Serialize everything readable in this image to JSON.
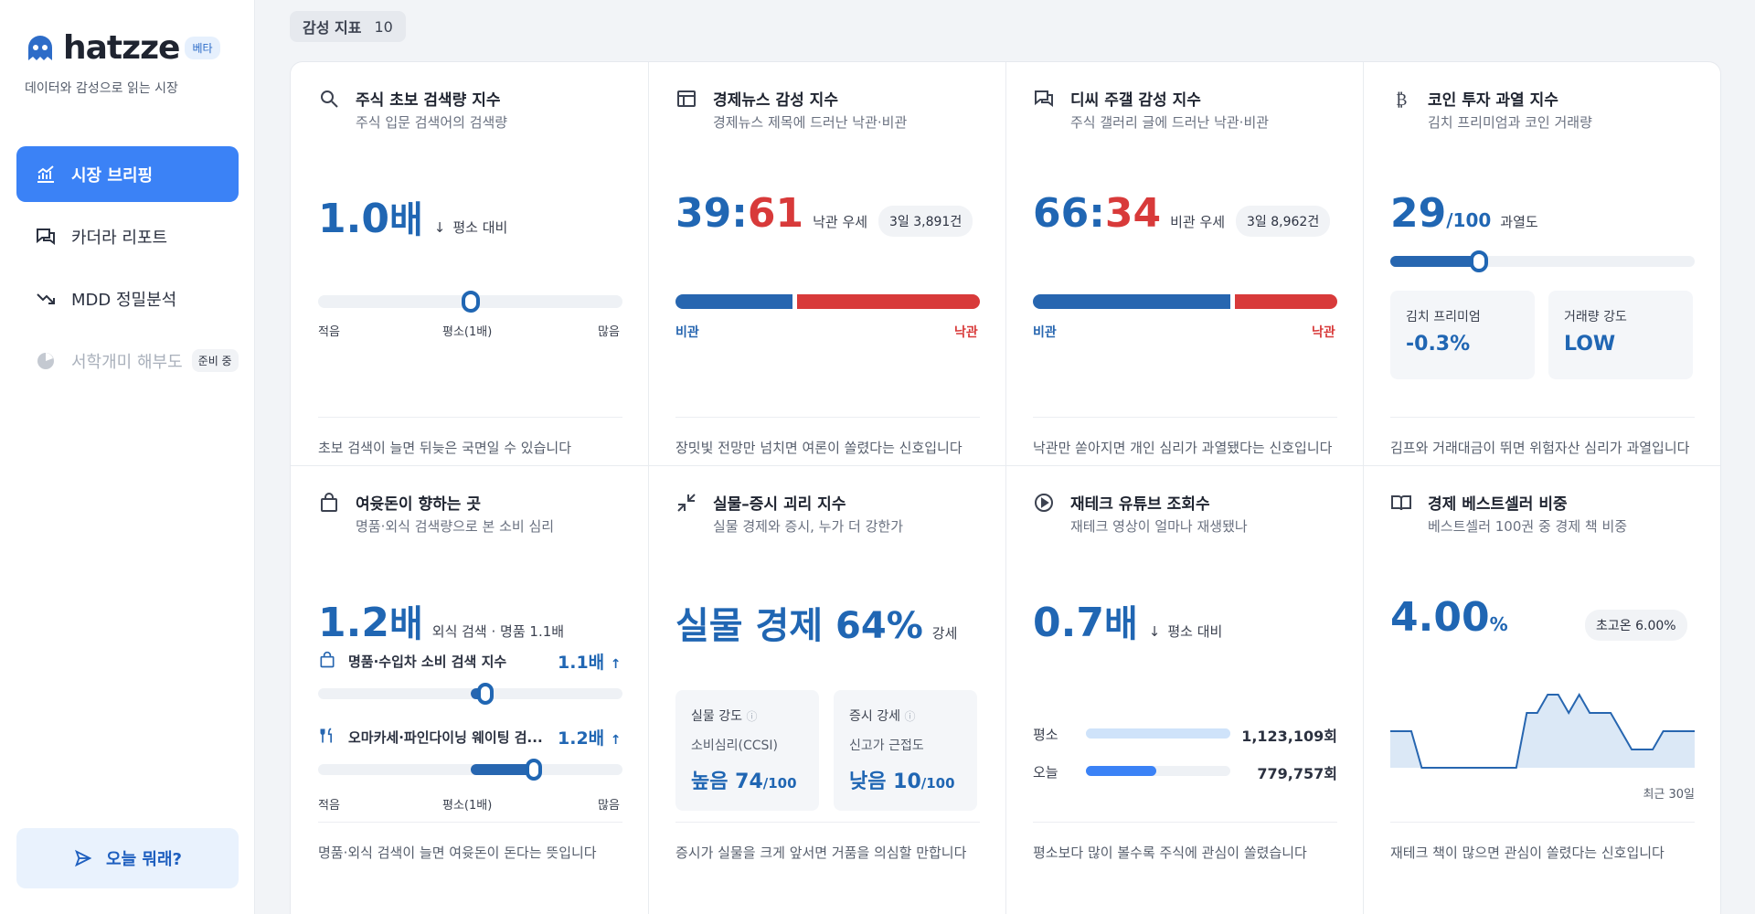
{
  "brand": {
    "name": "hatzze",
    "beta": "베타",
    "tagline": "데이터와 감성으로 읽는 시장"
  },
  "nav": {
    "items": [
      {
        "label": "시장 브리핑",
        "icon": "chart-icon",
        "state": "active"
      },
      {
        "label": "카더라 리포트",
        "icon": "chat-icon",
        "state": "normal"
      },
      {
        "label": "MDD 정밀분석",
        "icon": "trend-down-icon",
        "state": "normal"
      },
      {
        "label": "서학개미 해부도",
        "icon": "pie-icon",
        "state": "disabled",
        "badge": "준비 중"
      }
    ],
    "today_button": "오늘 뭐래?"
  },
  "section": {
    "label": "감성 지표",
    "count": "10"
  },
  "cards": {
    "c1": {
      "title": "주식 초보 검색량 지수",
      "sub": "주식 입문 검색어의 검색량",
      "value": "1.0",
      "unit": "배",
      "arrow": "↓",
      "note": "평소 대비",
      "gauge_fraction": 0.5,
      "low": "적음",
      "mid": "평소(1배)",
      "high": "많음",
      "foot": "초보 검색이 늘면 뒤늦은 국면일 수 있습니다"
    },
    "c2": {
      "title": "경제뉴스 감성 지수",
      "sub": "경제뉴스 제목에 드러난 낙관·비관",
      "neg": "39",
      "sep": ":",
      "pos": "61",
      "note": "낙관 우세",
      "pill": "3일 3,891건",
      "left_label": "비관",
      "right_label": "낙관",
      "neg_share": 39,
      "pos_share": 61,
      "foot": "장밋빛 전망만 넘치면 여론이 쏠렸다는 신호입니다"
    },
    "c3": {
      "title": "디씨 주갤 감성 지수",
      "sub": "주식 갤러리 글에 드러난 낙관·비관",
      "neg": "66",
      "sep": ":",
      "pos": "34",
      "note": "비관 우세",
      "pill": "3일 8,962건",
      "left_label": "비관",
      "right_label": "낙관",
      "neg_share": 66,
      "pos_share": 34,
      "foot": "낙관만 쏟아지면 개인 심리가 과열됐다는 신호입니다"
    },
    "c4": {
      "title": "코인 투자 과열 지수",
      "sub": "김치 프리미엄과 코인 거래량",
      "value": "29",
      "unit": "/100",
      "note": "과열도",
      "gauge_fraction": 0.29,
      "kimchi_label": "김치 프리미엄",
      "kimchi_value": "-0.3%",
      "volume_label": "거래량 강도",
      "volume_value": "LOW",
      "foot": "김프와 거래대금이 뛰면 위험자산 심리가 과열입니다"
    },
    "c5": {
      "title": "여윳돈이 향하는 곳",
      "sub": "명품·외식 검색량으로 본 소비 심리",
      "value": "1.2",
      "unit": "배",
      "note": "외식 검색 · 명품 1.1배",
      "row1_label": "명품·수입차 소비 검색 지수",
      "row1_value": "1.1배",
      "row1_arrow": "↑",
      "row1_fraction": 0.55,
      "row2_label": "오마카세·파인다이닝 웨이팅 검...",
      "row2_value": "1.2배",
      "row2_arrow": "↑",
      "row2_fraction": 0.71,
      "low": "적음",
      "mid": "평소(1배)",
      "high": "많음",
      "foot": "명품·외식 검색이 늘면 여윳돈이 돈다는 뜻입니다"
    },
    "c6": {
      "title": "실물–증시 괴리 지수",
      "sub": "실물 경제와 증시, 누가 더 강한가",
      "value": "실물 경제 64%",
      "note": "강세",
      "box1_title": "실물 강도",
      "box1_sub": "소비심리(CCSI)",
      "box1_value": "높음 74",
      "box1_unit": "/100",
      "box2_title": "증시 강세",
      "box2_sub": "신고가 근접도",
      "box2_value": "낮음 10",
      "box2_unit": "/100",
      "foot": "증시가 실물을 크게 앞서면 거품을 의심할 만합니다"
    },
    "c7": {
      "title": "재테크 유튜브 조회수",
      "sub": "재테크 영상이 얼마나 재생됐나",
      "value": "0.7",
      "unit": "배",
      "arrow": "↓",
      "note": "평소 대비",
      "row1_label": "평소",
      "row1_value": "1,123,109회",
      "row1_raw": 1123109,
      "row2_label": "오늘",
      "row2_value": "779,757회",
      "row2_raw": 779757,
      "foot": "평소보다 많이 볼수록 주식에 관심이 쏠렸습니다"
    },
    "c8": {
      "title": "경제 베스트셀러 비중",
      "sub": "베스트셀러 100권 중 경제 책 비중",
      "value": "4.00",
      "unit": "%",
      "pill": "초고온 6.00%",
      "period": "최근 30일",
      "foot": "재테크 책이 많으면 관심이 쏠렸다는 신호입니다"
    }
  },
  "chart_data": {
    "type": "area",
    "x": [
      1,
      2,
      3,
      4,
      5,
      6,
      7,
      8,
      9,
      10,
      11,
      12,
      13,
      14,
      15,
      16,
      17,
      18,
      19,
      20,
      21,
      22,
      23,
      24,
      25,
      26,
      27,
      28,
      29,
      30
    ],
    "values": [
      4,
      4,
      4,
      0,
      0,
      0,
      0,
      0,
      0,
      0,
      0,
      0,
      0,
      6,
      6,
      8,
      8,
      6,
      8,
      6,
      6,
      6,
      4,
      2,
      2,
      2,
      4,
      4,
      4,
      4
    ],
    "title": "",
    "xlabel": "최근 30일",
    "ylabel": ""
  },
  "colors": {
    "accent": "#3b82f6",
    "blue": "#2066b3",
    "red": "#d83a3a"
  }
}
